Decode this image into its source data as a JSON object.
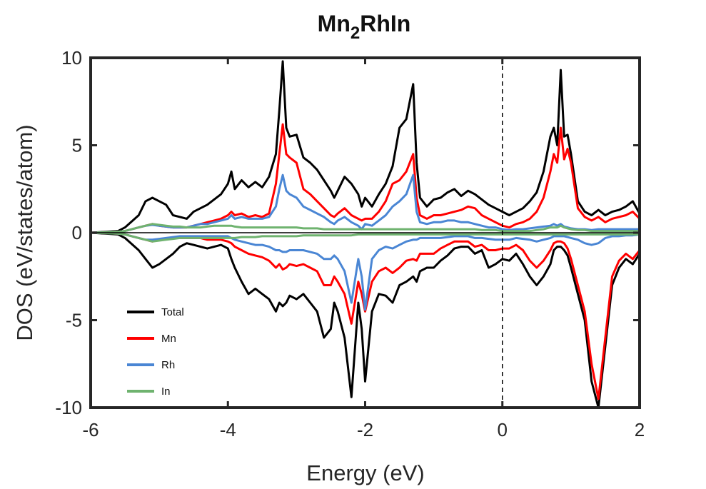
{
  "chart_data": {
    "type": "line",
    "title": {
      "main": "Mn",
      "sub": "2",
      "rest": "RhIn"
    },
    "xlabel": "Energy (eV)",
    "ylabel": "DOS (eV/states/atom)",
    "xlim": [
      -6,
      2
    ],
    "ylim": [
      -10,
      10
    ],
    "xticks": [
      -6,
      -4,
      -2,
      0,
      2
    ],
    "yticks": [
      10,
      5,
      0,
      -5,
      -10
    ],
    "fermi_level": 0,
    "legend_position": "bottom-left",
    "series": [
      {
        "name": "Total",
        "color": "#000000",
        "x": [
          -6.0,
          -5.6,
          -5.5,
          -5.3,
          -5.2,
          -5.1,
          -5.0,
          -4.9,
          -4.8,
          -4.7,
          -4.6,
          -4.5,
          -4.4,
          -4.3,
          -4.2,
          -4.1,
          -4.0,
          -3.95,
          -3.9,
          -3.8,
          -3.7,
          -3.6,
          -3.5,
          -3.4,
          -3.3,
          -3.25,
          -3.2,
          -3.15,
          -3.1,
          -3.0,
          -2.9,
          -2.8,
          -2.7,
          -2.6,
          -2.5,
          -2.45,
          -2.4,
          -2.3,
          -2.2,
          -2.1,
          -2.05,
          -2.0,
          -1.9,
          -1.8,
          -1.7,
          -1.6,
          -1.5,
          -1.4,
          -1.3,
          -1.25,
          -1.2,
          -1.1,
          -1.0,
          -0.9,
          -0.8,
          -0.7,
          -0.6,
          -0.5,
          -0.4,
          -0.3,
          -0.2,
          -0.1,
          0.0,
          0.1,
          0.2,
          0.3,
          0.4,
          0.5,
          0.6,
          0.7,
          0.75,
          0.8,
          0.85,
          0.9,
          0.95,
          1.0,
          1.1,
          1.2,
          1.3,
          1.4,
          1.5,
          1.6,
          1.7,
          1.8,
          1.9,
          2.0
        ],
        "up": [
          0,
          0.1,
          0.3,
          1.0,
          1.8,
          2.0,
          1.8,
          1.6,
          1.0,
          0.9,
          0.8,
          1.2,
          1.4,
          1.6,
          1.9,
          2.2,
          2.8,
          3.5,
          2.5,
          3.0,
          2.6,
          2.9,
          2.6,
          3.2,
          4.5,
          7.0,
          9.8,
          6.0,
          5.5,
          5.6,
          4.3,
          4.0,
          3.6,
          3.0,
          2.4,
          2.0,
          2.4,
          3.2,
          2.8,
          2.2,
          1.5,
          2.0,
          1.5,
          2.2,
          2.8,
          3.8,
          6.0,
          6.5,
          8.5,
          4.0,
          2.0,
          1.5,
          1.9,
          2.0,
          2.3,
          2.5,
          2.1,
          2.4,
          2.2,
          1.9,
          1.6,
          1.4,
          1.2,
          1.0,
          1.2,
          1.4,
          1.8,
          2.3,
          3.5,
          5.5,
          6.0,
          5.0,
          9.3,
          5.5,
          5.6,
          4.5,
          1.8,
          1.2,
          1.0,
          1.3,
          1.0,
          1.2,
          1.3,
          1.5,
          1.8,
          1.1
        ],
        "down": [
          0,
          -0.1,
          -0.3,
          -1.0,
          -1.5,
          -2.0,
          -1.8,
          -1.5,
          -1.2,
          -0.8,
          -0.6,
          -0.7,
          -0.8,
          -0.9,
          -0.8,
          -0.7,
          -0.9,
          -1.5,
          -2.0,
          -2.8,
          -3.5,
          -3.2,
          -3.5,
          -3.8,
          -4.5,
          -4.0,
          -4.2,
          -4.0,
          -3.6,
          -3.8,
          -3.5,
          -4.0,
          -4.5,
          -6.0,
          -5.5,
          -4.0,
          -4.5,
          -6.0,
          -9.4,
          -4.0,
          -5.5,
          -8.5,
          -4.5,
          -3.5,
          -3.6,
          -4.0,
          -3.0,
          -2.8,
          -2.5,
          -2.8,
          -2.2,
          -2.0,
          -2.0,
          -1.6,
          -1.3,
          -0.9,
          -0.8,
          -0.8,
          -1.2,
          -1.0,
          -2.0,
          -1.8,
          -1.5,
          -1.6,
          -1.2,
          -1.8,
          -2.5,
          -3.0,
          -2.5,
          -1.8,
          -1.0,
          -0.8,
          -0.8,
          -1.0,
          -1.3,
          -2.0,
          -3.5,
          -5.0,
          -8.5,
          -10.0,
          -6.5,
          -3.0,
          -2.0,
          -1.5,
          -1.8,
          -1.2
        ]
      },
      {
        "name": "Mn",
        "color": "#ff0000",
        "x": [
          -6.0,
          -5.6,
          -5.5,
          -5.3,
          -5.2,
          -5.1,
          -5.0,
          -4.9,
          -4.8,
          -4.7,
          -4.6,
          -4.5,
          -4.4,
          -4.3,
          -4.2,
          -4.1,
          -4.0,
          -3.95,
          -3.9,
          -3.8,
          -3.7,
          -3.6,
          -3.5,
          -3.4,
          -3.3,
          -3.25,
          -3.2,
          -3.15,
          -3.1,
          -3.0,
          -2.9,
          -2.8,
          -2.7,
          -2.6,
          -2.5,
          -2.45,
          -2.4,
          -2.3,
          -2.2,
          -2.1,
          -2.05,
          -2.0,
          -1.9,
          -1.8,
          -1.7,
          -1.6,
          -1.5,
          -1.4,
          -1.3,
          -1.25,
          -1.2,
          -1.1,
          -1.0,
          -0.9,
          -0.8,
          -0.7,
          -0.6,
          -0.5,
          -0.4,
          -0.3,
          -0.2,
          -0.1,
          0.0,
          0.1,
          0.2,
          0.3,
          0.4,
          0.5,
          0.6,
          0.7,
          0.75,
          0.8,
          0.85,
          0.9,
          0.95,
          1.0,
          1.1,
          1.2,
          1.3,
          1.4,
          1.5,
          1.6,
          1.7,
          1.8,
          1.9,
          2.0
        ],
        "up": [
          0,
          0.05,
          0.1,
          0.3,
          0.4,
          0.5,
          0.4,
          0.35,
          0.3,
          0.3,
          0.3,
          0.4,
          0.5,
          0.6,
          0.7,
          0.8,
          1.0,
          1.2,
          1.0,
          1.1,
          0.9,
          1.0,
          0.9,
          1.1,
          2.8,
          4.5,
          6.2,
          4.5,
          4.3,
          4.0,
          2.5,
          2.2,
          1.8,
          1.4,
          1.0,
          0.9,
          1.1,
          1.4,
          1.0,
          0.8,
          0.7,
          0.8,
          0.8,
          1.2,
          1.8,
          2.8,
          3.0,
          3.5,
          4.5,
          2.0,
          1.0,
          0.8,
          1.0,
          1.0,
          1.1,
          1.2,
          1.3,
          1.5,
          1.4,
          1.0,
          0.8,
          0.6,
          0.4,
          0.3,
          0.5,
          0.6,
          0.8,
          1.2,
          2.0,
          3.5,
          4.5,
          4.0,
          6.0,
          4.2,
          4.8,
          4.0,
          1.4,
          0.9,
          0.7,
          0.9,
          0.6,
          0.8,
          0.9,
          1.0,
          1.2,
          0.8
        ],
        "down": [
          0,
          -0.05,
          -0.1,
          -0.3,
          -0.4,
          -0.5,
          -0.4,
          -0.35,
          -0.3,
          -0.3,
          -0.3,
          -0.3,
          -0.3,
          -0.4,
          -0.4,
          -0.4,
          -0.5,
          -0.6,
          -0.8,
          -1.0,
          -1.2,
          -1.3,
          -1.4,
          -1.6,
          -2.0,
          -1.8,
          -2.1,
          -2.0,
          -1.8,
          -1.9,
          -1.8,
          -2.0,
          -2.2,
          -3.0,
          -3.0,
          -2.5,
          -2.8,
          -3.5,
          -5.2,
          -2.8,
          -3.5,
          -4.5,
          -2.8,
          -2.2,
          -2.0,
          -2.3,
          -2.0,
          -1.6,
          -1.5,
          -1.6,
          -1.2,
          -1.2,
          -1.2,
          -0.9,
          -0.7,
          -0.5,
          -0.5,
          -0.5,
          -0.8,
          -0.7,
          -1.0,
          -1.0,
          -0.9,
          -0.9,
          -0.7,
          -1.0,
          -1.6,
          -2.0,
          -1.6,
          -1.0,
          -0.6,
          -0.5,
          -0.5,
          -0.6,
          -0.9,
          -1.5,
          -3.0,
          -4.5,
          -7.5,
          -9.5,
          -6.0,
          -2.5,
          -1.6,
          -1.2,
          -1.5,
          -1.0
        ]
      },
      {
        "name": "Rh",
        "color": "#4a86d4",
        "x": [
          -6.0,
          -5.6,
          -5.5,
          -5.3,
          -5.2,
          -5.1,
          -5.0,
          -4.9,
          -4.8,
          -4.7,
          -4.6,
          -4.5,
          -4.4,
          -4.3,
          -4.2,
          -4.1,
          -4.0,
          -3.95,
          -3.9,
          -3.8,
          -3.7,
          -3.6,
          -3.5,
          -3.4,
          -3.3,
          -3.25,
          -3.2,
          -3.15,
          -3.1,
          -3.0,
          -2.9,
          -2.8,
          -2.7,
          -2.6,
          -2.5,
          -2.45,
          -2.4,
          -2.3,
          -2.2,
          -2.1,
          -2.05,
          -2.0,
          -1.9,
          -1.8,
          -1.7,
          -1.6,
          -1.5,
          -1.4,
          -1.3,
          -1.25,
          -1.2,
          -1.1,
          -1.0,
          -0.9,
          -0.8,
          -0.7,
          -0.6,
          -0.5,
          -0.4,
          -0.3,
          -0.2,
          -0.1,
          0.0,
          0.1,
          0.2,
          0.3,
          0.4,
          0.5,
          0.6,
          0.7,
          0.75,
          0.8,
          0.85,
          0.9,
          0.95,
          1.0,
          1.1,
          1.2,
          1.3,
          1.4,
          1.5,
          1.6,
          1.7,
          1.8,
          1.9,
          2.0
        ],
        "up": [
          0,
          0.05,
          0.1,
          0.3,
          0.4,
          0.45,
          0.4,
          0.35,
          0.3,
          0.3,
          0.3,
          0.4,
          0.5,
          0.5,
          0.6,
          0.7,
          0.8,
          1.0,
          0.8,
          0.9,
          0.8,
          0.8,
          0.8,
          0.9,
          1.5,
          2.5,
          3.3,
          2.4,
          2.2,
          2.0,
          1.5,
          1.3,
          1.1,
          0.9,
          0.6,
          0.5,
          0.7,
          0.9,
          0.6,
          0.4,
          0.2,
          0.5,
          0.4,
          0.7,
          1.0,
          1.5,
          1.8,
          2.2,
          3.3,
          1.2,
          0.6,
          0.5,
          0.6,
          0.6,
          0.7,
          0.7,
          0.6,
          0.6,
          0.5,
          0.4,
          0.3,
          0.3,
          0.2,
          0.15,
          0.2,
          0.2,
          0.25,
          0.3,
          0.35,
          0.4,
          0.5,
          0.4,
          0.5,
          0.35,
          0.3,
          0.25,
          0.2,
          0.2,
          0.15,
          0.2,
          0.2,
          0.2,
          0.2,
          0.2,
          0.2,
          0.2
        ],
        "down": [
          0,
          -0.05,
          -0.1,
          -0.3,
          -0.4,
          -0.4,
          -0.35,
          -0.3,
          -0.25,
          -0.2,
          -0.2,
          -0.2,
          -0.2,
          -0.2,
          -0.2,
          -0.2,
          -0.2,
          -0.3,
          -0.4,
          -0.5,
          -0.6,
          -0.7,
          -0.7,
          -0.8,
          -1.0,
          -1.0,
          -1.1,
          -1.1,
          -1.0,
          -1.0,
          -1.0,
          -1.1,
          -1.2,
          -1.5,
          -1.5,
          -1.3,
          -1.5,
          -2.2,
          -4.0,
          -1.5,
          -2.5,
          -4.4,
          -1.5,
          -1.0,
          -0.8,
          -0.9,
          -0.7,
          -0.5,
          -0.4,
          -0.4,
          -0.3,
          -0.3,
          -0.3,
          -0.3,
          -0.25,
          -0.2,
          -0.2,
          -0.2,
          -0.3,
          -0.3,
          -0.35,
          -0.4,
          -0.4,
          -0.4,
          -0.3,
          -0.35,
          -0.4,
          -0.5,
          -0.4,
          -0.3,
          -0.2,
          -0.2,
          -0.2,
          -0.2,
          -0.25,
          -0.3,
          -0.4,
          -0.6,
          -0.7,
          -0.6,
          -0.3,
          -0.2,
          -0.2,
          -0.15,
          -0.15,
          -0.1
        ]
      },
      {
        "name": "In",
        "color": "#6fb36f",
        "x": [
          -6.0,
          -5.6,
          -5.5,
          -5.3,
          -5.2,
          -5.1,
          -5.0,
          -4.9,
          -4.8,
          -4.7,
          -4.6,
          -4.5,
          -4.4,
          -4.3,
          -4.2,
          -4.1,
          -4.0,
          -3.95,
          -3.9,
          -3.8,
          -3.7,
          -3.6,
          -3.5,
          -3.4,
          -3.3,
          -3.25,
          -3.2,
          -3.15,
          -3.1,
          -3.0,
          -2.9,
          -2.8,
          -2.7,
          -2.6,
          -2.5,
          -2.45,
          -2.4,
          -2.3,
          -2.2,
          -2.1,
          -2.05,
          -2.0,
          -1.9,
          -1.8,
          -1.7,
          -1.6,
          -1.5,
          -1.4,
          -1.3,
          -1.25,
          -1.2,
          -1.1,
          -1.0,
          -0.9,
          -0.8,
          -0.7,
          -0.6,
          -0.5,
          -0.4,
          -0.3,
          -0.2,
          -0.1,
          0.0,
          0.1,
          0.2,
          0.3,
          0.4,
          0.5,
          0.6,
          0.7,
          0.75,
          0.8,
          0.85,
          0.9,
          0.95,
          1.0,
          1.1,
          1.2,
          1.3,
          1.4,
          1.5,
          1.6,
          1.7,
          1.8,
          1.9,
          2.0
        ],
        "up": [
          0,
          0.05,
          0.1,
          0.3,
          0.4,
          0.5,
          0.45,
          0.4,
          0.35,
          0.35,
          0.3,
          0.3,
          0.3,
          0.35,
          0.4,
          0.4,
          0.4,
          0.4,
          0.35,
          0.3,
          0.3,
          0.3,
          0.3,
          0.3,
          0.3,
          0.3,
          0.3,
          0.3,
          0.3,
          0.3,
          0.25,
          0.25,
          0.25,
          0.2,
          0.2,
          0.2,
          0.2,
          0.2,
          0.2,
          0.2,
          0.2,
          0.2,
          0.2,
          0.2,
          0.2,
          0.2,
          0.2,
          0.2,
          0.2,
          0.2,
          0.2,
          0.2,
          0.2,
          0.2,
          0.2,
          0.2,
          0.2,
          0.2,
          0.2,
          0.15,
          0.15,
          0.15,
          0.1,
          0.1,
          0.1,
          0.1,
          0.1,
          0.15,
          0.2,
          0.3,
          0.3,
          0.3,
          0.4,
          0.3,
          0.25,
          0.2,
          0.15,
          0.15,
          0.1,
          0.1,
          0.1,
          0.1,
          0.1,
          0.1,
          0.1,
          0.1
        ],
        "down": [
          0,
          -0.05,
          -0.1,
          -0.3,
          -0.4,
          -0.5,
          -0.45,
          -0.4,
          -0.35,
          -0.3,
          -0.3,
          -0.3,
          -0.3,
          -0.3,
          -0.3,
          -0.3,
          -0.3,
          -0.3,
          -0.3,
          -0.25,
          -0.25,
          -0.25,
          -0.2,
          -0.2,
          -0.2,
          -0.2,
          -0.2,
          -0.2,
          -0.2,
          -0.2,
          -0.15,
          -0.15,
          -0.15,
          -0.15,
          -0.15,
          -0.15,
          -0.15,
          -0.15,
          -0.15,
          -0.1,
          -0.1,
          -0.1,
          -0.1,
          -0.1,
          -0.1,
          -0.1,
          -0.1,
          -0.1,
          -0.1,
          -0.1,
          -0.1,
          -0.1,
          -0.1,
          -0.1,
          -0.1,
          -0.1,
          -0.1,
          -0.1,
          -0.1,
          -0.1,
          -0.1,
          -0.1,
          -0.1,
          -0.1,
          -0.1,
          -0.1,
          -0.1,
          -0.1,
          -0.1,
          -0.1,
          -0.1,
          -0.1,
          -0.1,
          -0.1,
          -0.1,
          -0.1,
          -0.1,
          -0.1,
          -0.1,
          -0.1,
          -0.1,
          -0.1,
          -0.1,
          -0.1,
          -0.1,
          -0.1
        ]
      }
    ]
  }
}
